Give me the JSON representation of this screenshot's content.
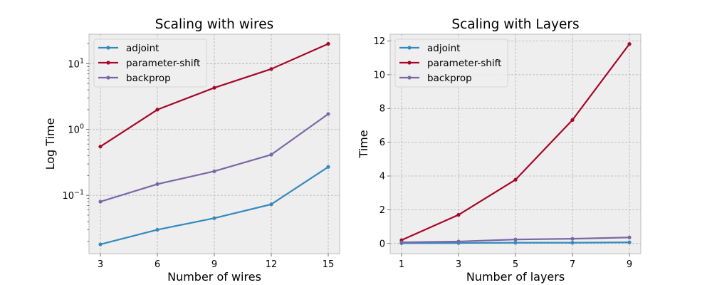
{
  "chart_data": [
    {
      "type": "line",
      "title": "Scaling with wires",
      "xlabel": "Number of wires",
      "ylabel": "Log Time",
      "yscale": "log",
      "xlim": [
        2.4,
        15.6
      ],
      "ylim": [
        0.013,
        28
      ],
      "grid": true,
      "legend_position": "top-left",
      "x": [
        3,
        6,
        9,
        12,
        15
      ],
      "x_ticks": [
        {
          "value": 3,
          "label": "3"
        },
        {
          "value": 6,
          "label": "6"
        },
        {
          "value": 9,
          "label": "9"
        },
        {
          "value": 12,
          "label": "12"
        },
        {
          "value": 15,
          "label": "15"
        }
      ],
      "y_ticks": [
        {
          "value": 0.1,
          "base": "10",
          "exp": "−1"
        },
        {
          "value": 1,
          "base": "10",
          "exp": "0"
        },
        {
          "value": 10,
          "base": "10",
          "exp": "1"
        }
      ],
      "y_minor_ticks": [
        0.02,
        0.03,
        0.04,
        0.05,
        0.06,
        0.07,
        0.08,
        0.09,
        0.2,
        0.3,
        0.4,
        0.5,
        0.6,
        0.7,
        0.8,
        0.9,
        2,
        3,
        4,
        5,
        6,
        7,
        8,
        9,
        20
      ],
      "series": [
        {
          "name": "adjoint",
          "color": "#348abd",
          "values": [
            0.018,
            0.03,
            0.045,
            0.073,
            0.27
          ]
        },
        {
          "name": "parameter-shift",
          "color": "#a60628",
          "values": [
            0.55,
            2.0,
            4.3,
            8.3,
            20.0
          ]
        },
        {
          "name": "backprop",
          "color": "#7a68a6",
          "values": [
            0.08,
            0.148,
            0.232,
            0.415,
            1.72
          ]
        }
      ]
    },
    {
      "type": "line",
      "title": "Scaling with Layers",
      "xlabel": "Number of layers",
      "ylabel": "Time",
      "yscale": "linear",
      "xlim": [
        0.6,
        9.4
      ],
      "ylim": [
        -0.6,
        12.4
      ],
      "grid": true,
      "legend_position": "top-left",
      "x": [
        1,
        3,
        5,
        7,
        9
      ],
      "x_ticks": [
        {
          "value": 1,
          "label": "1"
        },
        {
          "value": 3,
          "label": "3"
        },
        {
          "value": 5,
          "label": "5"
        },
        {
          "value": 7,
          "label": "7"
        },
        {
          "value": 9,
          "label": "9"
        }
      ],
      "y_ticks": [
        {
          "value": 0,
          "label": "0"
        },
        {
          "value": 2,
          "label": "2"
        },
        {
          "value": 4,
          "label": "4"
        },
        {
          "value": 6,
          "label": "6"
        },
        {
          "value": 8,
          "label": "8"
        },
        {
          "value": 10,
          "label": "10"
        },
        {
          "value": 12,
          "label": "12"
        }
      ],
      "series": [
        {
          "name": "adjoint",
          "color": "#348abd",
          "values": [
            0.02,
            0.03,
            0.05,
            0.05,
            0.07
          ]
        },
        {
          "name": "parameter-shift",
          "color": "#a60628",
          "values": [
            0.2,
            1.7,
            3.78,
            7.32,
            11.82
          ]
        },
        {
          "name": "backprop",
          "color": "#7a68a6",
          "values": [
            0.07,
            0.12,
            0.24,
            0.28,
            0.36
          ]
        }
      ]
    }
  ]
}
